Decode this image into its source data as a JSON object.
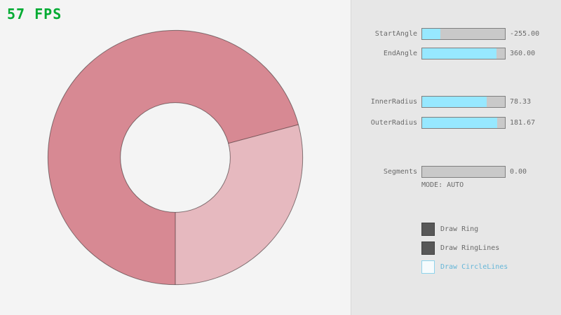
{
  "fps": {
    "text": "57 FPS",
    "color": "#00ab32"
  },
  "ring": {
    "color_dark": "#d78993",
    "color_light": "#e6b9bf",
    "line_color": "rgba(0,0,0,0.45)",
    "start_angle": "-255.00",
    "end_angle": "360.00",
    "inner_radius": "78.33",
    "outer_radius": "181.67"
  },
  "panel": {
    "sliders": [
      {
        "label": "StartAngle",
        "value": "-255.00",
        "fill_pct": 22
      },
      {
        "label": "EndAngle",
        "value": "360.00",
        "fill_pct": 90
      },
      {
        "label": "InnerRadius",
        "value": "78.33",
        "fill_pct": 78
      },
      {
        "label": "OuterRadius",
        "value": "181.67",
        "fill_pct": 91
      },
      {
        "label": "Segments",
        "value": "0.00",
        "fill_pct": 0
      }
    ],
    "mode_text": "MODE: AUTO",
    "checkboxes": [
      {
        "label": "Draw Ring",
        "checked": true
      },
      {
        "label": "Draw RingLines",
        "checked": true
      },
      {
        "label": "Draw CircleLines",
        "checked": false
      }
    ],
    "colors": {
      "slider_fill": "#97e8ff",
      "text": "#6a6a6a",
      "accent_blue": "#66b6d8",
      "panel_bg": "#e7e7e7"
    }
  }
}
